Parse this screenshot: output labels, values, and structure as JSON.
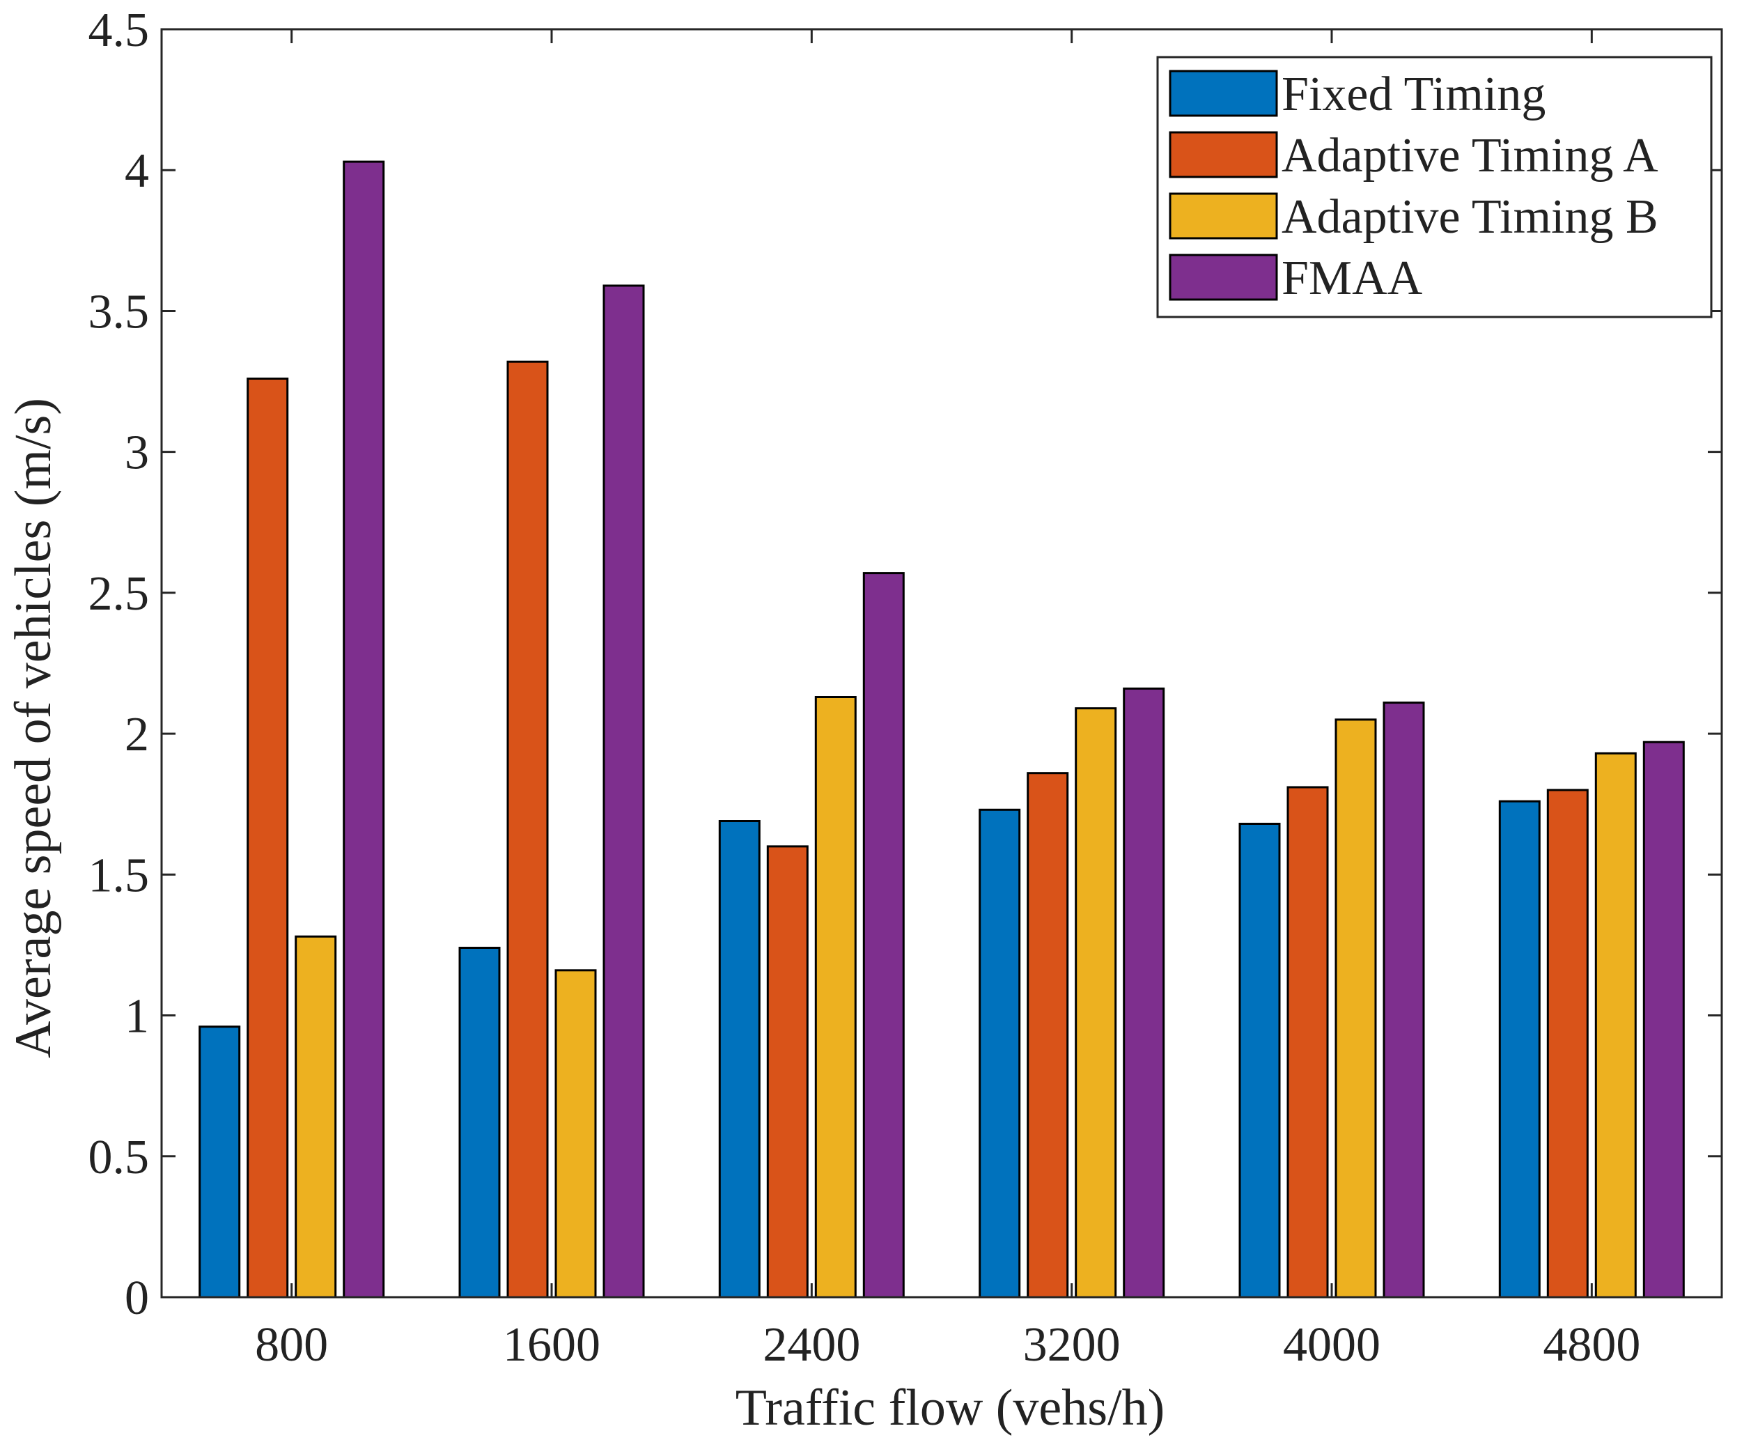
{
  "chart_data": {
    "type": "bar",
    "title": "",
    "xlabel": "Traffic flow (vehs/h)",
    "ylabel": "Average speed of vehicles (m/s)",
    "ylim": [
      0,
      4.5
    ],
    "yticks": [
      "0",
      "0.5",
      "1",
      "1.5",
      "2",
      "2.5",
      "3",
      "3.5",
      "4",
      "4.5"
    ],
    "categories": [
      "800",
      "1600",
      "2400",
      "3200",
      "4000",
      "4800"
    ],
    "series": [
      {
        "name": "Fixed Timing",
        "color": "#0072BD",
        "values": [
          0.96,
          1.24,
          1.69,
          1.73,
          1.68,
          1.76
        ]
      },
      {
        "name": "Adaptive Timing A",
        "color": "#D95319",
        "values": [
          3.26,
          3.32,
          1.6,
          1.86,
          1.81,
          1.8
        ]
      },
      {
        "name": "Adaptive Timing B",
        "color": "#EDB120",
        "values": [
          1.28,
          1.16,
          2.13,
          2.09,
          2.05,
          1.93
        ]
      },
      {
        "name": "FMAA",
        "color": "#7E2F8E",
        "values": [
          4.03,
          3.59,
          2.57,
          2.16,
          2.11,
          1.97
        ]
      }
    ],
    "legend_position": "top-right",
    "grid": false
  }
}
